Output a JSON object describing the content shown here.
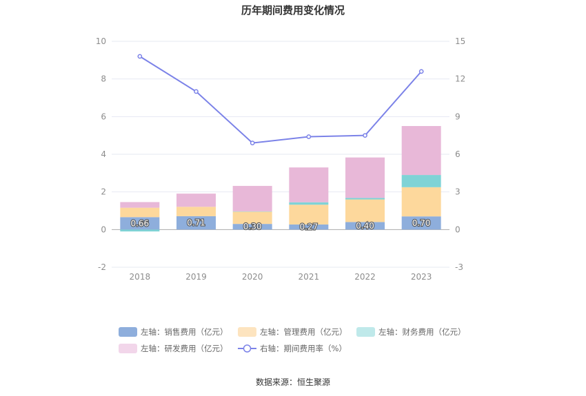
{
  "chart_data": {
    "type": "bar",
    "title": "历年期间费用变化情况",
    "categories": [
      "2018",
      "2019",
      "2020",
      "2021",
      "2022",
      "2023"
    ],
    "left_axis": {
      "ylim": [
        -2,
        10
      ],
      "ticks": [
        "-2",
        "0",
        "2",
        "4",
        "6",
        "8",
        "10"
      ]
    },
    "right_axis": {
      "ylim": [
        -3,
        15
      ],
      "ticks": [
        "-3",
        "0",
        "3",
        "6",
        "9",
        "12",
        "15"
      ]
    },
    "series": [
      {
        "name": "左轴：销售费用（亿元）",
        "stack": true,
        "color": "#8eaedc",
        "values": [
          0.66,
          0.71,
          0.3,
          0.27,
          0.4,
          0.7
        ],
        "labels": [
          "0.66",
          "0.71",
          "0.30",
          "0.27",
          "0.40",
          "0.70"
        ]
      },
      {
        "name": "左轴：管理费用（亿元）",
        "stack": true,
        "color": "#fdd89c",
        "values": [
          0.5,
          0.5,
          0.65,
          1.05,
          1.2,
          1.55
        ]
      },
      {
        "name": "左轴：财务费用（亿元）",
        "stack": true,
        "color": "#7fd3d6",
        "values": [
          -0.1,
          0.0,
          0.02,
          0.13,
          0.08,
          0.65
        ]
      },
      {
        "name": "左轴：研发费用（亿元）",
        "stack": true,
        "color": "#e8b8d8",
        "values": [
          0.3,
          0.7,
          1.35,
          1.85,
          2.15,
          2.6
        ]
      },
      {
        "name": "右轴：期间费用率（%）",
        "type": "line",
        "axis": "right",
        "color": "#7b82e8",
        "values": [
          13.8,
          11.0,
          6.9,
          7.4,
          7.5,
          12.6
        ]
      }
    ],
    "legend_position": "bottom",
    "grid": true
  },
  "legend_colors": [
    "#8eaedc",
    "#fde4bf",
    "#bfe9ea",
    "#f2d6ea"
  ],
  "source": "数据来源：恒生聚源"
}
